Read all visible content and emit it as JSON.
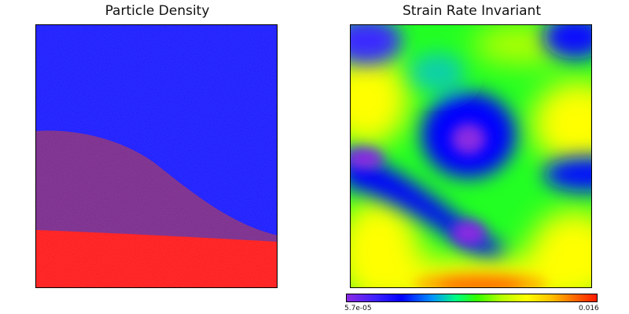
{
  "panels": {
    "left_title": "Particle Density",
    "right_title": "Strain Rate Invariant"
  },
  "colorbar": {
    "min_label": "5.7e-05",
    "max_label": "0.016",
    "colors": [
      "#8a2be2",
      "#0000ff",
      "#00ff7f",
      "#ffff00",
      "#ff1a00"
    ]
  },
  "materials": {
    "upper_color": "#1a1aff",
    "middle_color": "#7a2a8c",
    "lower_color": "#ff1a1a"
  }
}
